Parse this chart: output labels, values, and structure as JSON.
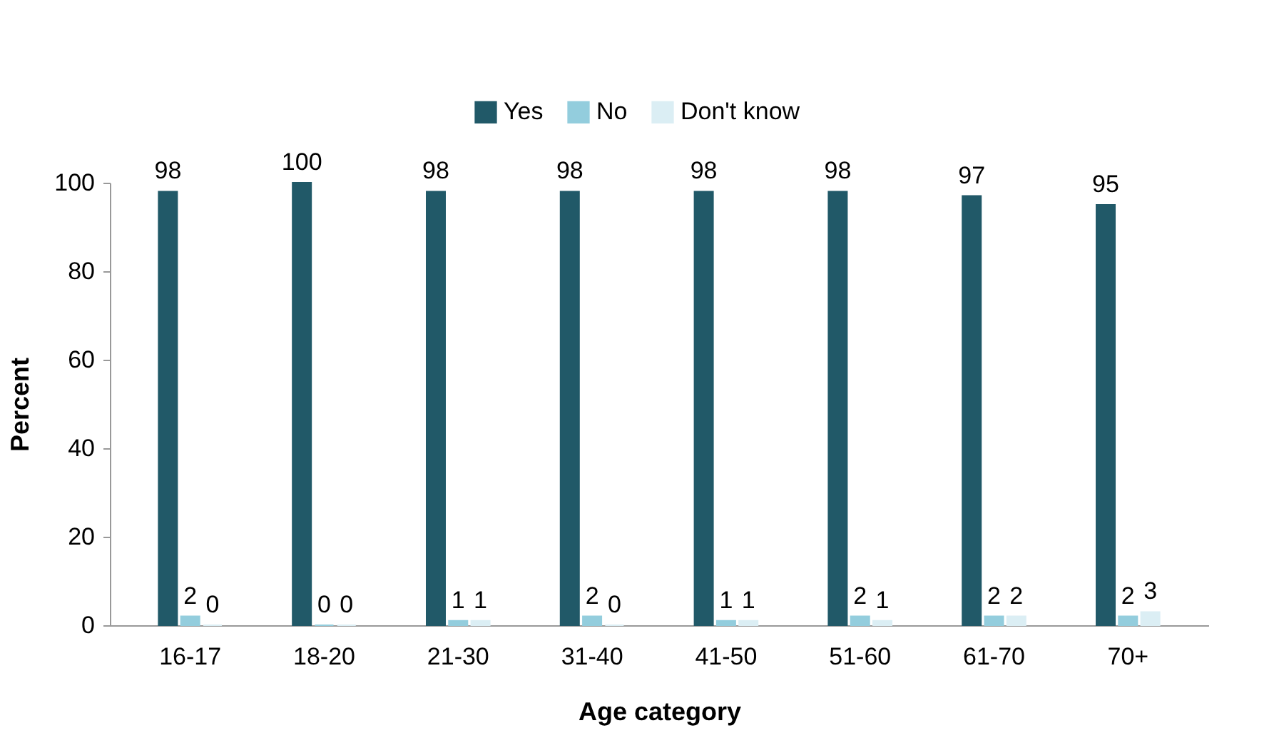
{
  "chart_data": {
    "type": "bar",
    "xlabel": "Age category",
    "ylabel": "Percent",
    "categories": [
      "16-17",
      "18-20",
      "21-30",
      "31-40",
      "41-50",
      "51-60",
      "61-70",
      "70+"
    ],
    "series": [
      {
        "name": "Yes",
        "color": "#215968",
        "values": [
          98,
          100,
          98,
          98,
          98,
          98,
          97,
          95
        ]
      },
      {
        "name": "No",
        "color": "#93cddd",
        "values": [
          2,
          0,
          1,
          2,
          1,
          2,
          2,
          2
        ]
      },
      {
        "name": "Don't know",
        "color": "#dbeef4",
        "values": [
          0,
          0,
          1,
          0,
          1,
          1,
          2,
          3
        ]
      }
    ],
    "ylim": [
      0,
      100
    ],
    "yticks": [
      0,
      20,
      40,
      60,
      80,
      100
    ],
    "grid": false,
    "legend": "top",
    "data_labels": true
  }
}
